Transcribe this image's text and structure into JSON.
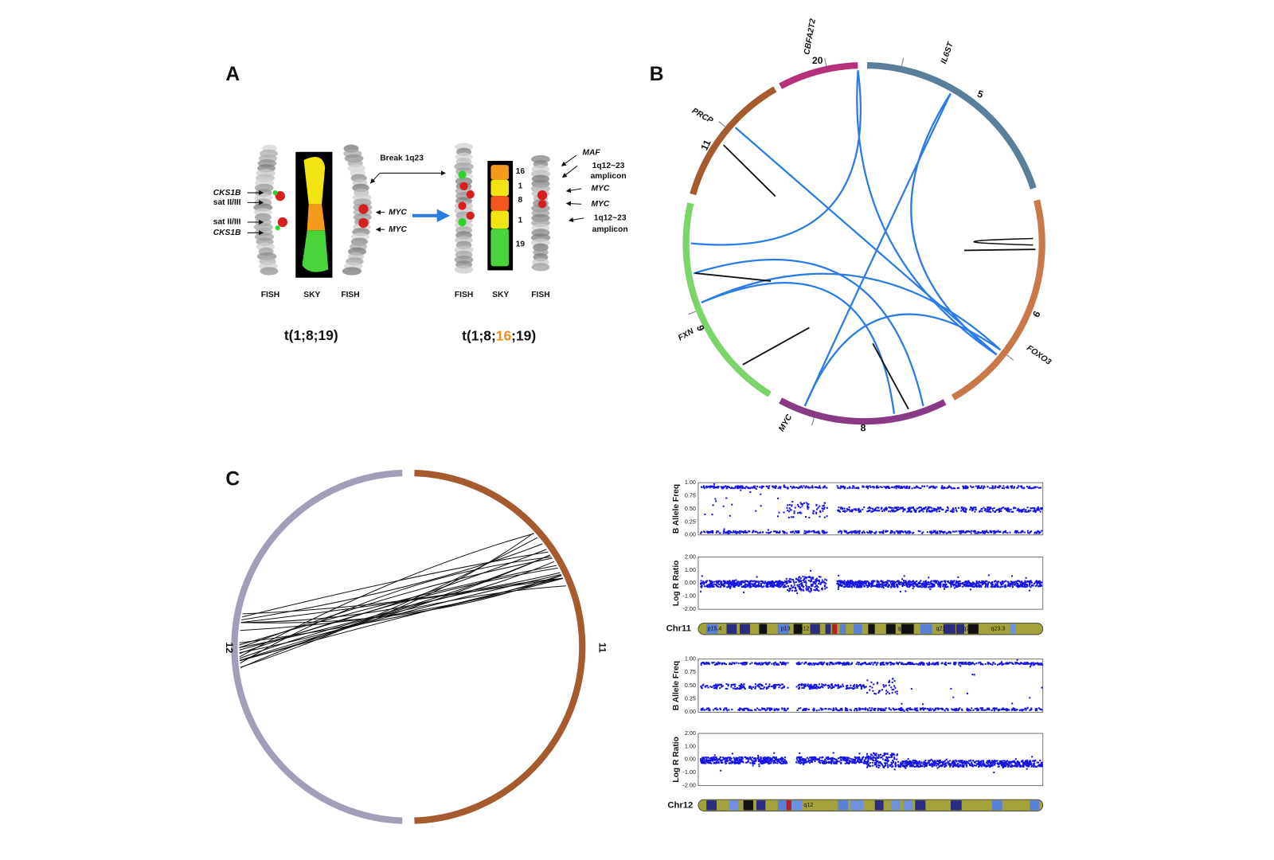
{
  "panels": {
    "A": {
      "label": "A",
      "left": {
        "marker_labels": [
          "CKS1B",
          "sat II/III",
          "sat II/III",
          "CKS1B"
        ],
        "gene_labels": [
          "MYC",
          "MYC"
        ],
        "columns": [
          "FISH",
          "SKY",
          "FISH"
        ],
        "caption": "t(1;8;19)"
      },
      "break_label": "Break 1q23",
      "right": {
        "sky_labels": [
          "16",
          "1",
          "8",
          "1",
          "19"
        ],
        "labels": [
          "MAF",
          "1q12~23",
          "amplicon",
          "MYC",
          "MYC",
          "1q12~23",
          "amplicon"
        ],
        "columns": [
          "FISH",
          "SKY",
          "FISH"
        ],
        "caption": [
          "t(1;8;",
          "16",
          ";19)"
        ]
      }
    },
    "B": {
      "label": "B",
      "chromosomes": [
        "20",
        "5",
        "6",
        "8",
        "9",
        "11"
      ],
      "genes": [
        "CBFA2T2",
        "IL6ST",
        "FOXO3",
        "MYC",
        "FXN",
        "PRCP"
      ]
    },
    "C": {
      "label": "C",
      "chromosomes": [
        "12",
        "11"
      ],
      "tracks": [
        {
          "axis_label": "B Allele Freq",
          "ticks": [
            "1.00",
            "0.75",
            "0.50",
            "0.25",
            "0.00"
          ]
        },
        {
          "axis_label": "Log R Ratio",
          "ticks": [
            "2.00",
            "1.00",
            "0.00",
            "-1.00",
            "-2.00"
          ]
        },
        {
          "axis_label": "B Allele Freq",
          "ticks": [
            "1.00",
            "0.75",
            "0.50",
            "0.25",
            "0.00"
          ]
        },
        {
          "axis_label": "Log R Ratio",
          "ticks": [
            "2.00",
            "1.00",
            "0.00",
            "-1.00",
            "-2.00"
          ]
        }
      ],
      "ideograms": [
        {
          "name": "Chr11",
          "bands": [
            "p15.4",
            "p13",
            "p12",
            "q14.1",
            "q21",
            "q22.3",
            "q23.3"
          ]
        },
        {
          "name": "Chr12",
          "bands": [
            "q12"
          ]
        }
      ]
    }
  }
}
